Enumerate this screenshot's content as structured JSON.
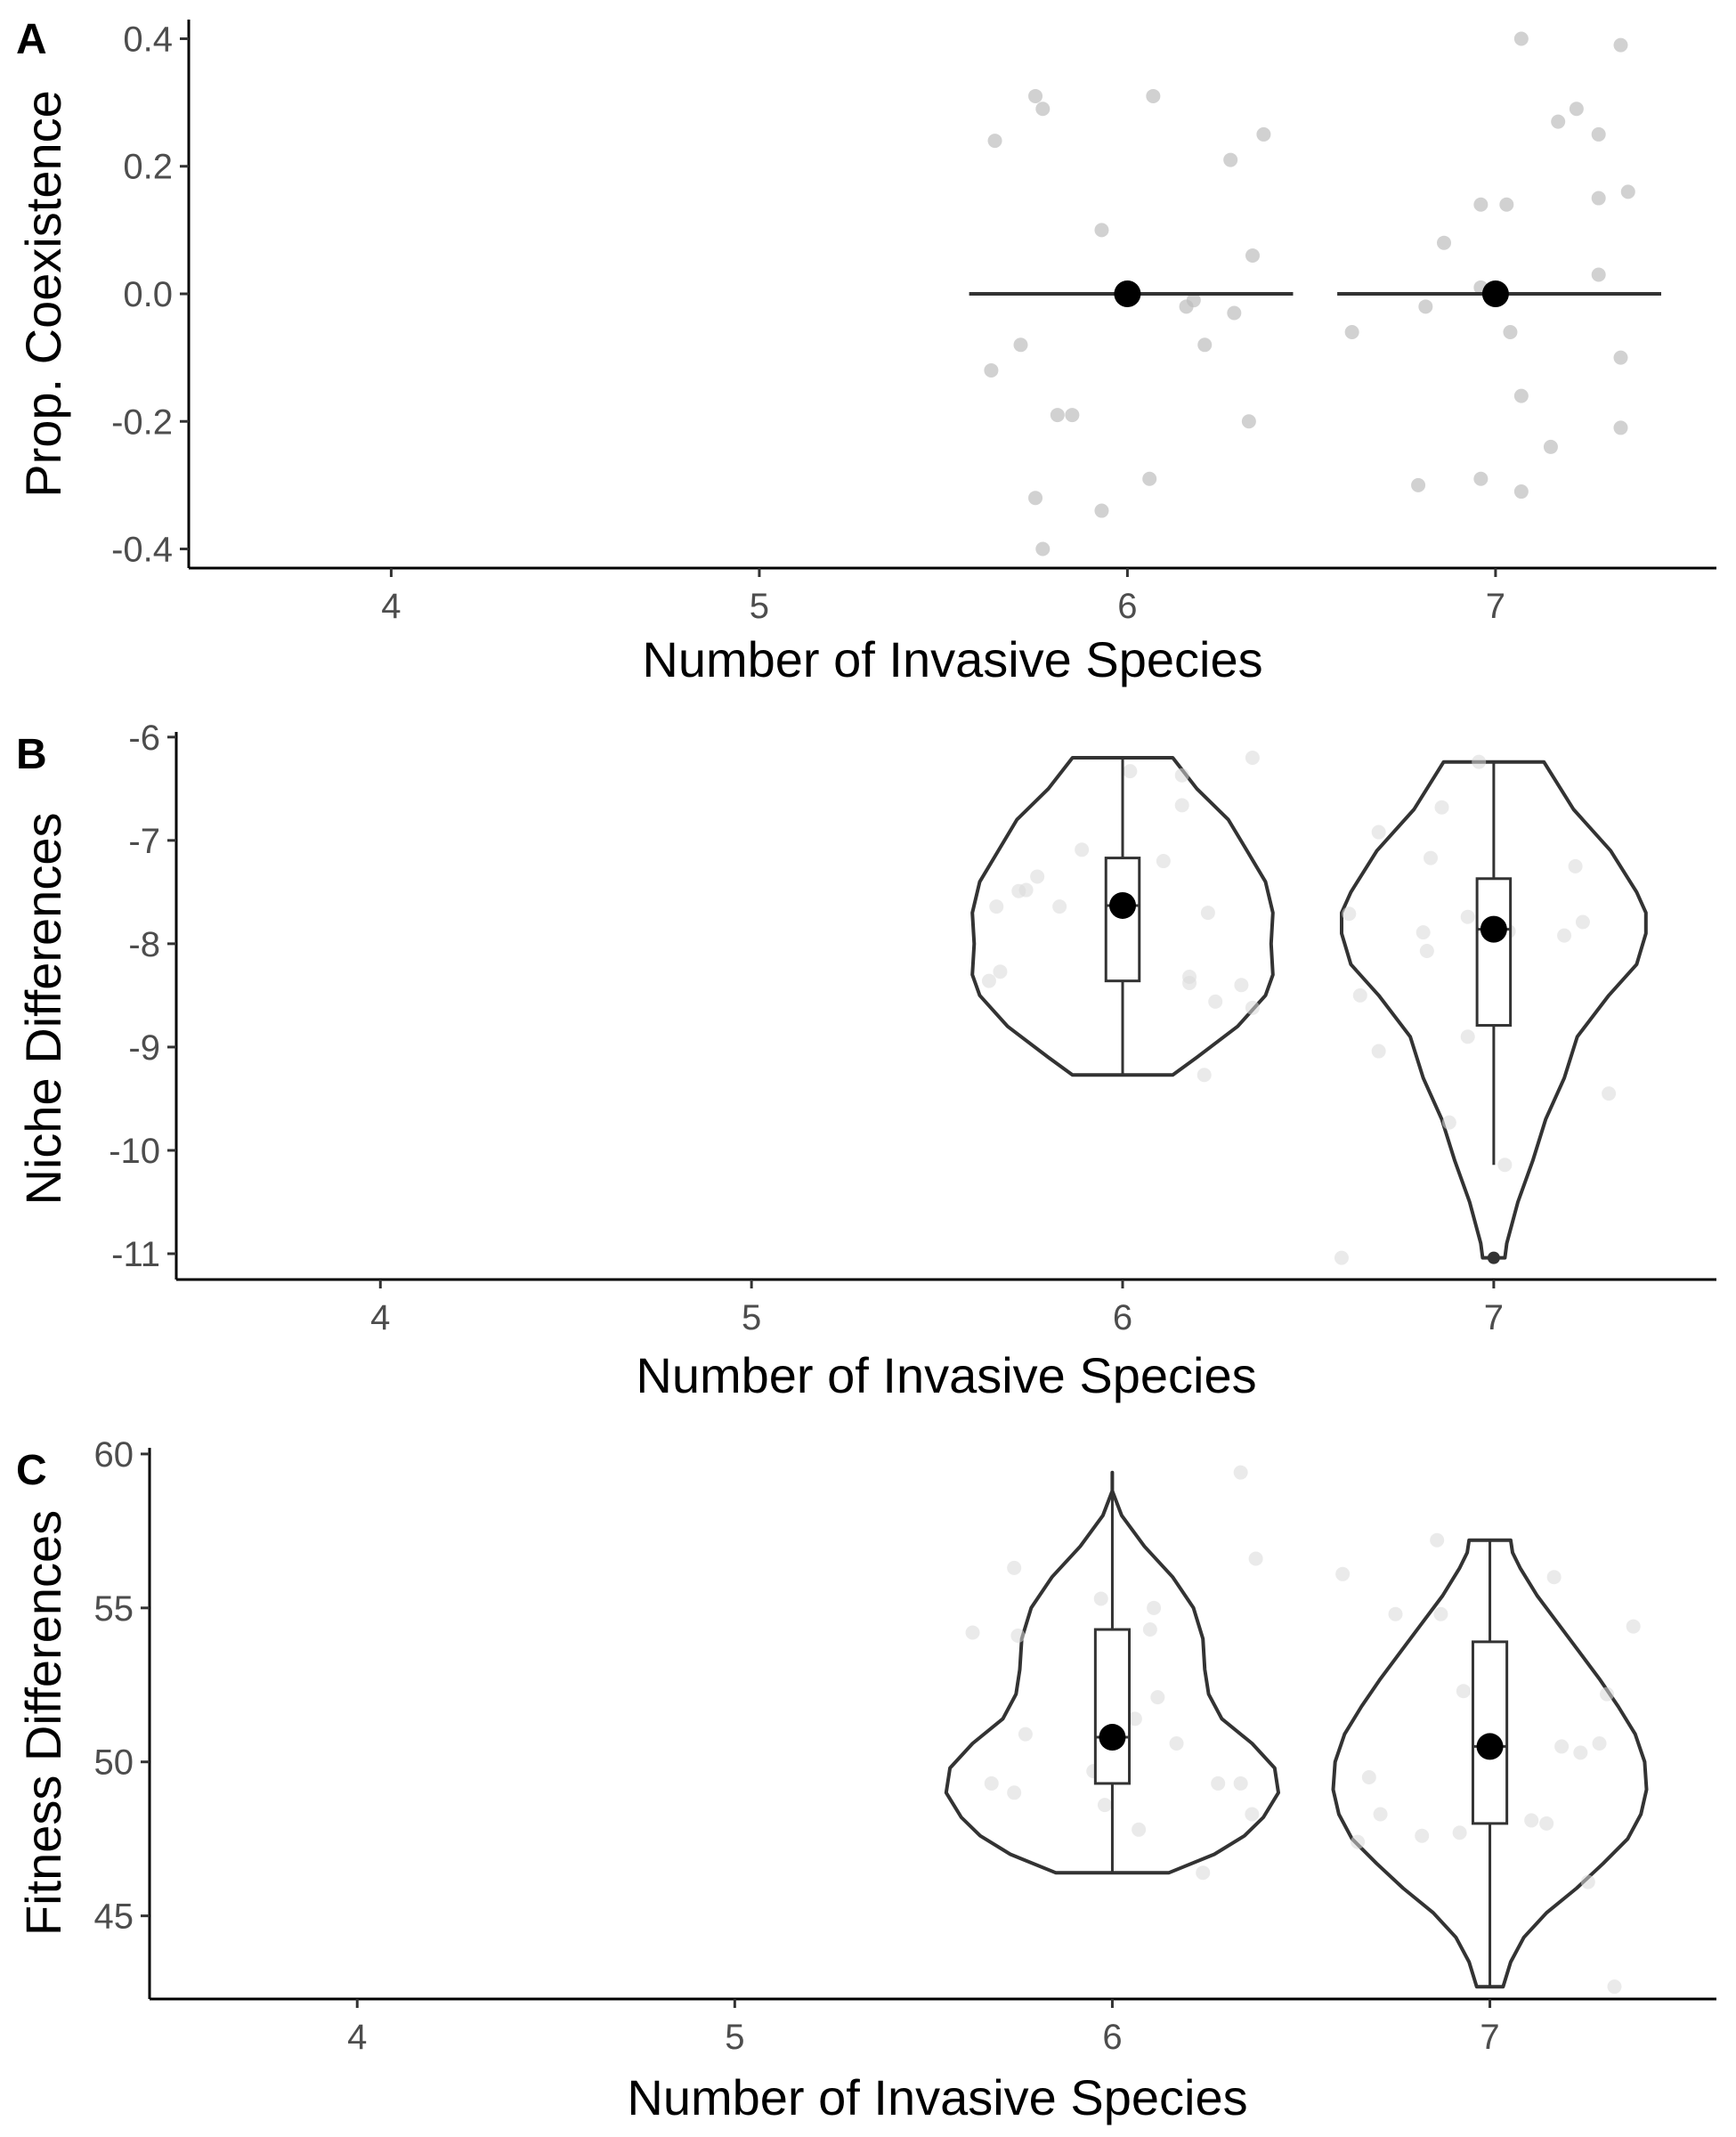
{
  "chart_data": [
    {
      "panel_label": "A",
      "type": "scatter",
      "xlabel": "Number of Invasive Species",
      "ylabel": "Prop. Coexistence",
      "xlim": [
        3.45,
        7.6
      ],
      "ylim": [
        -0.43,
        0.43
      ],
      "x_ticks": [
        4,
        5,
        6,
        7
      ],
      "x_tick_labels": [
        "4",
        "5",
        "6",
        "7"
      ],
      "y_ticks": [
        -0.4,
        -0.2,
        0.0,
        0.2,
        0.4
      ],
      "y_tick_labels": [
        "-0.4",
        "-0.2",
        "0.0",
        "0.2",
        "0.4"
      ],
      "grid": false,
      "colors": {
        "points": "#bdbdbd",
        "summary": "#000000",
        "line": "#333333"
      },
      "points": [
        {
          "x": 5.64,
          "y": 0.24
        },
        {
          "x": 5.75,
          "y": 0.31
        },
        {
          "x": 5.77,
          "y": 0.29
        },
        {
          "x": 6.07,
          "y": 0.31
        },
        {
          "x": 6.37,
          "y": 0.25
        },
        {
          "x": 6.28,
          "y": 0.21
        },
        {
          "x": 5.93,
          "y": 0.1
        },
        {
          "x": 6.34,
          "y": 0.06
        },
        {
          "x": 6.18,
          "y": -0.01
        },
        {
          "x": 6.16,
          "y": -0.02
        },
        {
          "x": 6.29,
          "y": -0.03
        },
        {
          "x": 6.21,
          "y": -0.08
        },
        {
          "x": 5.71,
          "y": -0.08
        },
        {
          "x": 5.63,
          "y": -0.12
        },
        {
          "x": 5.81,
          "y": -0.19
        },
        {
          "x": 5.85,
          "y": -0.19
        },
        {
          "x": 6.33,
          "y": -0.2
        },
        {
          "x": 5.75,
          "y": -0.32
        },
        {
          "x": 6.06,
          "y": -0.29
        },
        {
          "x": 5.93,
          "y": -0.34
        },
        {
          "x": 5.77,
          "y": -0.4
        },
        {
          "x": 7.07,
          "y": 0.4
        },
        {
          "x": 7.34,
          "y": 0.39
        },
        {
          "x": 7.22,
          "y": 0.29
        },
        {
          "x": 7.17,
          "y": 0.27
        },
        {
          "x": 7.28,
          "y": 0.25
        },
        {
          "x": 7.36,
          "y": 0.16
        },
        {
          "x": 7.28,
          "y": 0.15
        },
        {
          "x": 6.96,
          "y": 0.14
        },
        {
          "x": 7.03,
          "y": 0.14
        },
        {
          "x": 6.86,
          "y": 0.08
        },
        {
          "x": 7.28,
          "y": 0.03
        },
        {
          "x": 6.96,
          "y": 0.01
        },
        {
          "x": 6.61,
          "y": -0.06
        },
        {
          "x": 6.81,
          "y": -0.02
        },
        {
          "x": 7.04,
          "y": -0.06
        },
        {
          "x": 7.34,
          "y": -0.1
        },
        {
          "x": 7.07,
          "y": -0.16
        },
        {
          "x": 7.34,
          "y": -0.21
        },
        {
          "x": 7.15,
          "y": -0.24
        },
        {
          "x": 6.79,
          "y": -0.3
        },
        {
          "x": 6.96,
          "y": -0.29
        },
        {
          "x": 7.07,
          "y": -0.31
        }
      ],
      "summaries": [
        {
          "x": 6,
          "value": 0.0,
          "hline_from": 5.57,
          "hline_to": 6.45
        },
        {
          "x": 7,
          "value": 0.0,
          "hline_from": 6.57,
          "hline_to": 7.45
        }
      ]
    },
    {
      "panel_label": "B",
      "type": "violin",
      "xlabel": "Number of Invasive Species",
      "ylabel": "Niche Differences",
      "xlim": [
        3.45,
        7.6
      ],
      "ylim": [
        -11.25,
        -5.95
      ],
      "x_ticks": [
        4,
        5,
        6,
        7
      ],
      "x_tick_labels": [
        "4",
        "5",
        "6",
        "7"
      ],
      "y_ticks": [
        -11,
        -10,
        -9,
        -8,
        -7,
        -6
      ],
      "y_tick_labels": [
        "-11",
        "-10",
        "-9",
        "-8",
        "-7",
        "-6"
      ],
      "grid": false,
      "colors": {
        "points": "#d9d9d9",
        "summary": "#000000",
        "outline": "#333333"
      },
      "violins": [
        {
          "x": 6,
          "profile": [
            [
              -9.27,
              0.27
            ],
            [
              -9.1,
              0.4
            ],
            [
              -8.8,
              0.62
            ],
            [
              -8.5,
              0.77
            ],
            [
              -8.3,
              0.81
            ],
            [
              -8.0,
              0.8
            ],
            [
              -7.7,
              0.81
            ],
            [
              -7.4,
              0.77
            ],
            [
              -7.1,
              0.67
            ],
            [
              -6.8,
              0.57
            ],
            [
              -6.5,
              0.4
            ],
            [
              -6.2,
              0.27
            ]
          ],
          "box": {
            "q1": -8.36,
            "median": -7.63,
            "q3": -7.17,
            "min": -9.27,
            "max": -6.2
          },
          "summary": -7.63
        },
        {
          "x": 7,
          "profile": [
            [
              -11.04,
              0.06
            ],
            [
              -10.9,
              0.07
            ],
            [
              -10.5,
              0.13
            ],
            [
              -10.1,
              0.21
            ],
            [
              -9.7,
              0.28
            ],
            [
              -9.3,
              0.38
            ],
            [
              -8.9,
              0.45
            ],
            [
              -8.5,
              0.62
            ],
            [
              -8.2,
              0.77
            ],
            [
              -7.9,
              0.82
            ],
            [
              -7.7,
              0.82
            ],
            [
              -7.5,
              0.77
            ],
            [
              -7.1,
              0.63
            ],
            [
              -6.7,
              0.43
            ],
            [
              -6.24,
              0.27
            ]
          ],
          "box": {
            "q1": -8.79,
            "median": -7.86,
            "q3": -7.37,
            "min": -10.14,
            "max": -6.24
          },
          "outliers": [
            -11.04
          ],
          "summary": -7.86
        }
      ],
      "points": [
        {
          "x": 6.35,
          "y": -6.2
        },
        {
          "x": 6.02,
          "y": -6.33
        },
        {
          "x": 6.16,
          "y": -6.37
        },
        {
          "x": 6.16,
          "y": -6.66
        },
        {
          "x": 5.89,
          "y": -7.09
        },
        {
          "x": 6.11,
          "y": -7.2
        },
        {
          "x": 5.77,
          "y": -7.35
        },
        {
          "x": 5.74,
          "y": -7.48
        },
        {
          "x": 5.72,
          "y": -7.49
        },
        {
          "x": 5.66,
          "y": -7.64
        },
        {
          "x": 5.83,
          "y": -7.64
        },
        {
          "x": 6.23,
          "y": -7.7
        },
        {
          "x": 5.67,
          "y": -8.27
        },
        {
          "x": 6.18,
          "y": -8.32
        },
        {
          "x": 6.18,
          "y": -8.38
        },
        {
          "x": 5.64,
          "y": -8.36
        },
        {
          "x": 6.32,
          "y": -8.4
        },
        {
          "x": 6.25,
          "y": -8.56
        },
        {
          "x": 6.35,
          "y": -8.62
        },
        {
          "x": 6.22,
          "y": -9.27
        },
        {
          "x": 6.96,
          "y": -6.24
        },
        {
          "x": 6.86,
          "y": -6.68
        },
        {
          "x": 6.69,
          "y": -6.92
        },
        {
          "x": 6.83,
          "y": -7.17
        },
        {
          "x": 7.22,
          "y": -7.25
        },
        {
          "x": 6.61,
          "y": -7.71
        },
        {
          "x": 6.93,
          "y": -7.74
        },
        {
          "x": 7.24,
          "y": -7.79
        },
        {
          "x": 7.19,
          "y": -7.92
        },
        {
          "x": 6.81,
          "y": -7.89
        },
        {
          "x": 7.04,
          "y": -7.88
        },
        {
          "x": 6.82,
          "y": -8.07
        },
        {
          "x": 6.64,
          "y": -8.5
        },
        {
          "x": 6.69,
          "y": -9.04
        },
        {
          "x": 6.93,
          "y": -8.9
        },
        {
          "x": 6.88,
          "y": -9.73
        },
        {
          "x": 7.31,
          "y": -9.45
        },
        {
          "x": 7.03,
          "y": -10.14
        },
        {
          "x": 6.59,
          "y": -11.04
        }
      ]
    },
    {
      "panel_label": "C",
      "type": "violin",
      "xlabel": "Number of Invasive Species",
      "ylabel": "Fitness Differences",
      "xlim": [
        3.45,
        7.6
      ],
      "ylim": [
        42.3,
        60.2
      ],
      "x_ticks": [
        4,
        5,
        6,
        7
      ],
      "x_tick_labels": [
        "4",
        "5",
        "6",
        "7"
      ],
      "y_ticks": [
        45,
        50,
        55,
        60
      ],
      "y_tick_labels": [
        "45",
        "50",
        "55",
        "60"
      ],
      "grid": false,
      "colors": {
        "points": "#d9d9d9",
        "summary": "#000000",
        "outline": "#333333"
      },
      "violins": [
        {
          "x": 6,
          "profile": [
            [
              46.4,
              0.3
            ],
            [
              47.0,
              0.54
            ],
            [
              47.6,
              0.7
            ],
            [
              48.2,
              0.8
            ],
            [
              49.0,
              0.88
            ],
            [
              49.8,
              0.86
            ],
            [
              50.6,
              0.74
            ],
            [
              51.4,
              0.58
            ],
            [
              52.2,
              0.51
            ],
            [
              53.0,
              0.49
            ],
            [
              54.0,
              0.48
            ],
            [
              55.0,
              0.43
            ],
            [
              56.0,
              0.32
            ],
            [
              57.0,
              0.17
            ],
            [
              58.0,
              0.05
            ],
            [
              58.8,
              0.0
            ],
            [
              59.4,
              0.0
            ]
          ],
          "box": {
            "q1": 49.3,
            "median": 50.8,
            "q3": 54.3,
            "min": 46.4,
            "max": 59.4
          },
          "summary": 50.8
        },
        {
          "x": 7,
          "profile": [
            [
              42.7,
              0.07
            ],
            [
              43.5,
              0.11
            ],
            [
              44.3,
              0.18
            ],
            [
              45.1,
              0.3
            ],
            [
              45.9,
              0.46
            ],
            [
              46.7,
              0.6
            ],
            [
              47.5,
              0.73
            ],
            [
              48.3,
              0.8
            ],
            [
              49.1,
              0.83
            ],
            [
              50.0,
              0.82
            ],
            [
              50.9,
              0.77
            ],
            [
              51.8,
              0.68
            ],
            [
              52.7,
              0.58
            ],
            [
              53.6,
              0.47
            ],
            [
              54.5,
              0.36
            ],
            [
              55.4,
              0.25
            ],
            [
              56.3,
              0.16
            ],
            [
              56.8,
              0.12
            ],
            [
              57.2,
              0.11
            ]
          ],
          "box": {
            "q1": 48.0,
            "median": 50.5,
            "q3": 53.9,
            "min": 42.7,
            "max": 57.2
          },
          "summary": 50.5
        }
      ],
      "points": [
        {
          "x": 6.34,
          "y": 59.4
        },
        {
          "x": 6.38,
          "y": 56.6
        },
        {
          "x": 5.74,
          "y": 56.3
        },
        {
          "x": 5.97,
          "y": 55.3
        },
        {
          "x": 6.11,
          "y": 55.0
        },
        {
          "x": 6.1,
          "y": 54.3
        },
        {
          "x": 5.63,
          "y": 54.2
        },
        {
          "x": 5.75,
          "y": 54.1
        },
        {
          "x": 6.12,
          "y": 52.1
        },
        {
          "x": 6.06,
          "y": 51.4
        },
        {
          "x": 5.77,
          "y": 50.9
        },
        {
          "x": 6.17,
          "y": 50.6
        },
        {
          "x": 6.02,
          "y": 50.5
        },
        {
          "x": 5.95,
          "y": 49.7
        },
        {
          "x": 5.68,
          "y": 49.3
        },
        {
          "x": 5.74,
          "y": 49.0
        },
        {
          "x": 6.28,
          "y": 49.3
        },
        {
          "x": 6.34,
          "y": 49.3
        },
        {
          "x": 6.37,
          "y": 48.3
        },
        {
          "x": 5.98,
          "y": 48.6
        },
        {
          "x": 6.07,
          "y": 47.8
        },
        {
          "x": 6.24,
          "y": 46.4
        },
        {
          "x": 6.86,
          "y": 57.2
        },
        {
          "x": 6.61,
          "y": 56.1
        },
        {
          "x": 7.17,
          "y": 56.0
        },
        {
          "x": 6.75,
          "y": 54.8
        },
        {
          "x": 6.87,
          "y": 54.8
        },
        {
          "x": 7.38,
          "y": 54.4
        },
        {
          "x": 6.93,
          "y": 52.3
        },
        {
          "x": 7.31,
          "y": 52.2
        },
        {
          "x": 6.97,
          "y": 50.8
        },
        {
          "x": 7.01,
          "y": 50.7
        },
        {
          "x": 7.19,
          "y": 50.5
        },
        {
          "x": 7.24,
          "y": 50.3
        },
        {
          "x": 7.29,
          "y": 50.6
        },
        {
          "x": 6.68,
          "y": 49.5
        },
        {
          "x": 6.71,
          "y": 48.3
        },
        {
          "x": 6.65,
          "y": 47.4
        },
        {
          "x": 6.82,
          "y": 47.6
        },
        {
          "x": 6.92,
          "y": 47.7
        },
        {
          "x": 7.15,
          "y": 48.0
        },
        {
          "x": 7.11,
          "y": 48.1
        },
        {
          "x": 7.26,
          "y": 46.1
        },
        {
          "x": 7.33,
          "y": 42.7
        }
      ]
    }
  ]
}
